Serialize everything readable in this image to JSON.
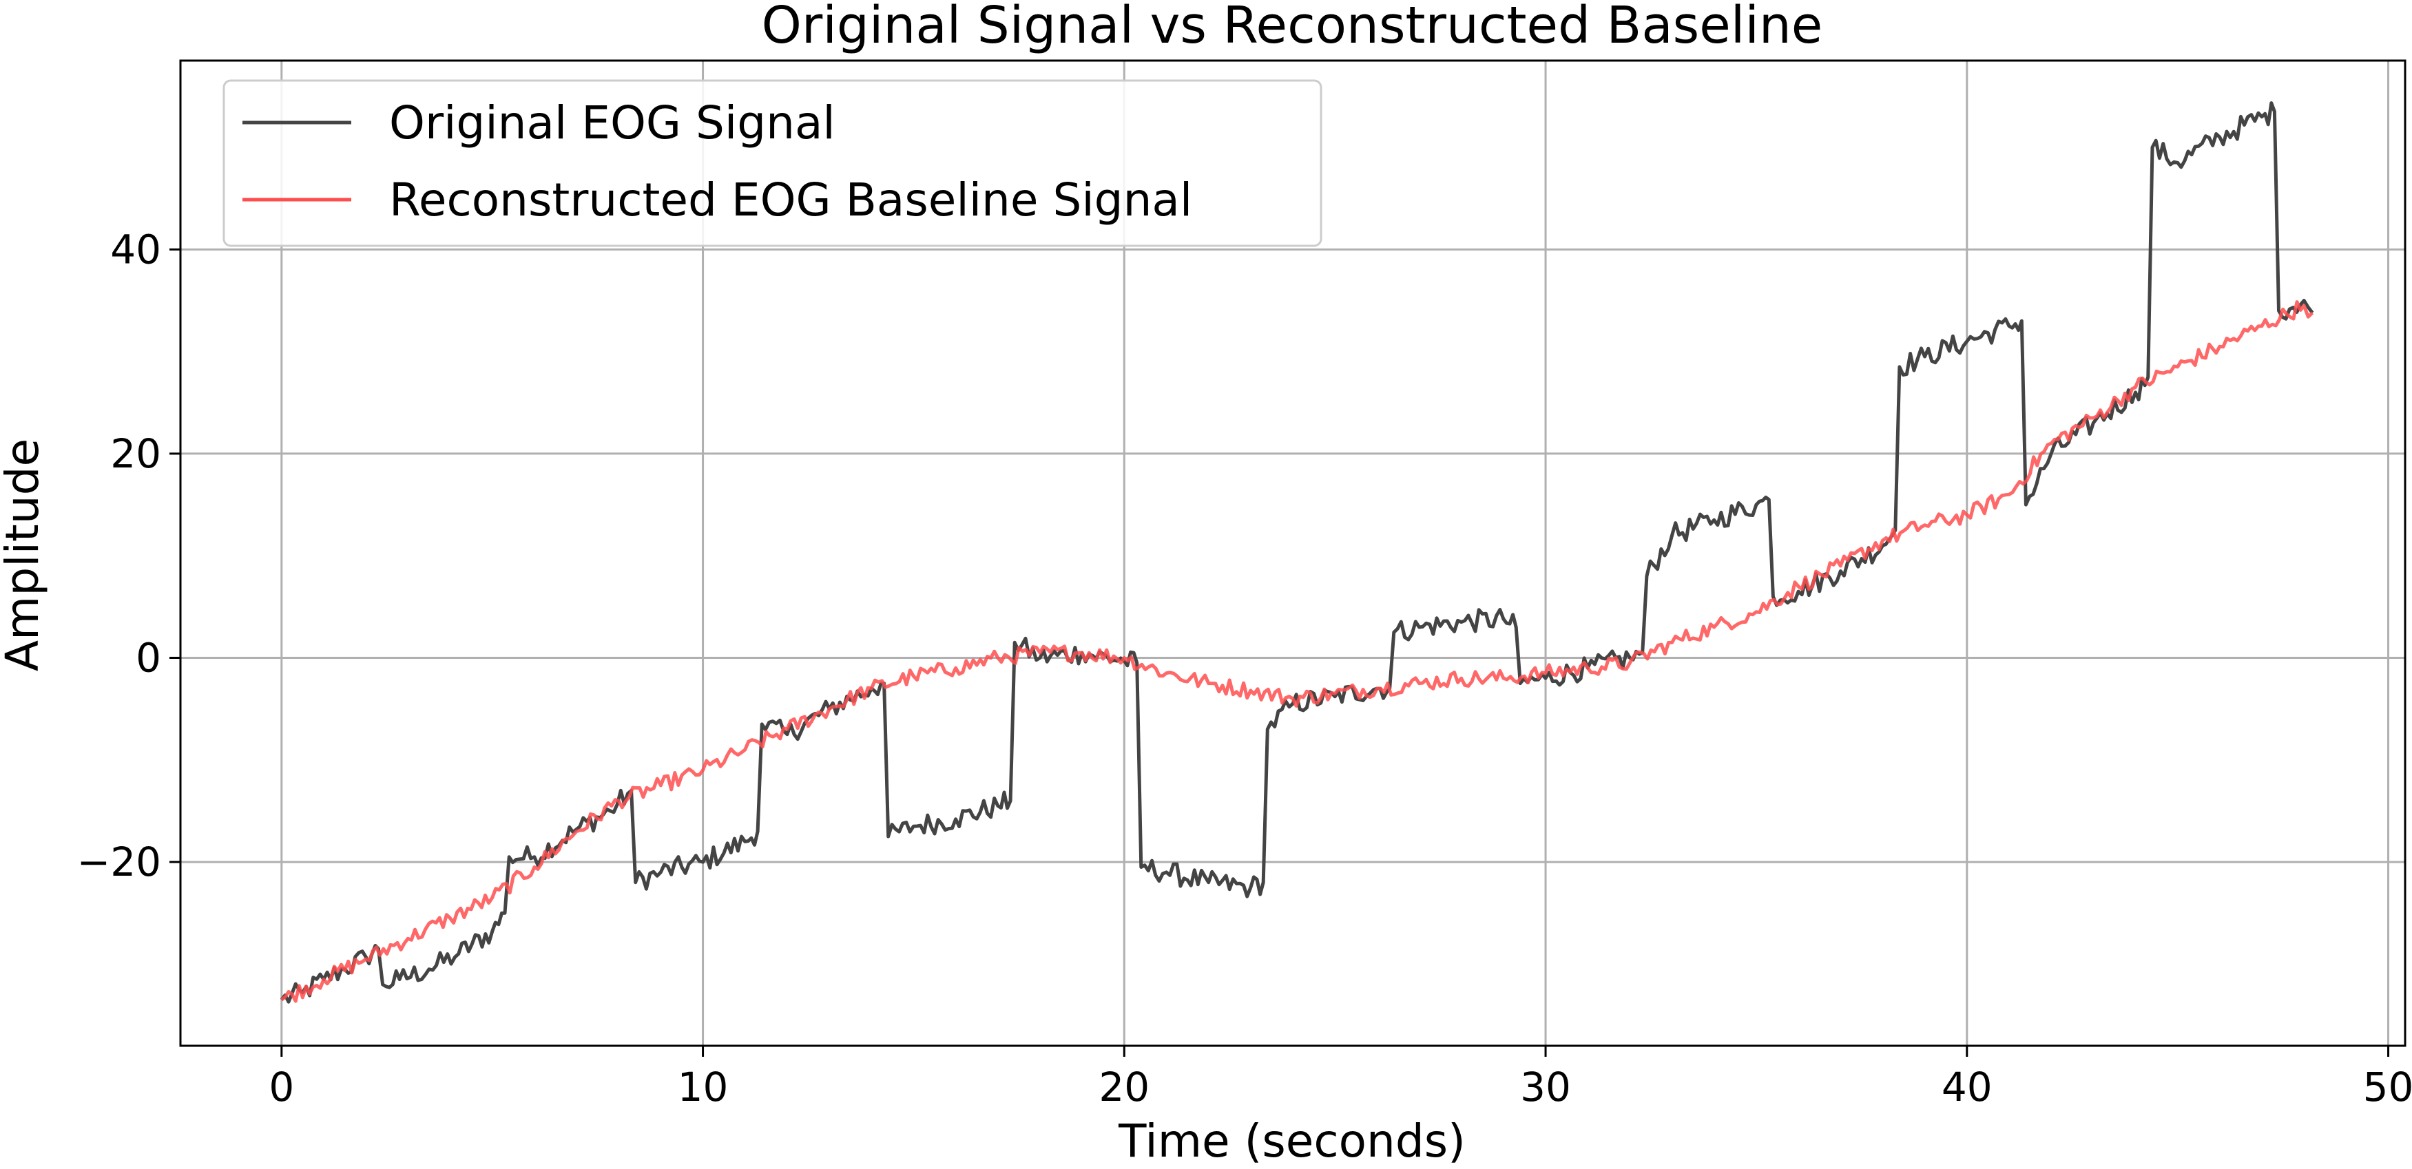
{
  "chart_data": {
    "type": "line",
    "title": "Original Signal vs Reconstructed Baseline",
    "xlabel": "Time (seconds)",
    "ylabel": "Amplitude",
    "xlim": [
      -2.4,
      50.4
    ],
    "ylim": [
      -38,
      58.5
    ],
    "x_ticks": [
      0,
      10,
      20,
      30,
      40,
      50
    ],
    "x_tick_labels": [
      "0",
      "10",
      "20",
      "30",
      "40",
      "50"
    ],
    "y_ticks": [
      -20,
      0,
      20,
      40
    ],
    "y_tick_labels": [
      "−20",
      "0",
      "20",
      "40"
    ],
    "grid": true,
    "legend_position": "upper-left",
    "series": [
      {
        "name": "Original EOG Signal",
        "color": "#444444",
        "points": [
          [
            0.0,
            -33.5
          ],
          [
            0.5,
            -32.8
          ],
          [
            1.0,
            -31.5
          ],
          [
            1.5,
            -30.5
          ],
          [
            2.0,
            -29.3
          ],
          [
            2.3,
            -28.5
          ],
          [
            2.4,
            -32.0
          ],
          [
            2.8,
            -31.5
          ],
          [
            3.5,
            -30.5
          ],
          [
            4.2,
            -29.0
          ],
          [
            5.0,
            -26.8
          ],
          [
            5.3,
            -25.0
          ],
          [
            5.4,
            -19.5
          ],
          [
            6.0,
            -19.5
          ],
          [
            7.0,
            -16.8
          ],
          [
            7.8,
            -15.0
          ],
          [
            8.3,
            -13.0
          ],
          [
            8.4,
            -22.0
          ],
          [
            9.0,
            -21.0
          ],
          [
            10.0,
            -20.0
          ],
          [
            11.0,
            -18.0
          ],
          [
            11.3,
            -17.0
          ],
          [
            11.4,
            -6.5
          ],
          [
            12.0,
            -7.5
          ],
          [
            13.0,
            -5.0
          ],
          [
            14.0,
            -3.0
          ],
          [
            14.3,
            -2.5
          ],
          [
            14.4,
            -17.5
          ],
          [
            15.0,
            -16.5
          ],
          [
            16.0,
            -15.8
          ],
          [
            17.0,
            -14.5
          ],
          [
            17.3,
            -14.0
          ],
          [
            17.4,
            1.5
          ],
          [
            18.0,
            0.0
          ],
          [
            19.0,
            0.5
          ],
          [
            20.0,
            -0.3
          ],
          [
            20.3,
            -0.5
          ],
          [
            20.4,
            -20.5
          ],
          [
            21.0,
            -21.0
          ],
          [
            22.0,
            -22.0
          ],
          [
            23.0,
            -22.5
          ],
          [
            23.3,
            -22.0
          ],
          [
            23.4,
            -7.0
          ],
          [
            24.0,
            -4.5
          ],
          [
            25.0,
            -3.8
          ],
          [
            26.0,
            -3.0
          ],
          [
            26.3,
            -3.0
          ],
          [
            26.4,
            2.5
          ],
          [
            27.0,
            3.0
          ],
          [
            28.0,
            3.5
          ],
          [
            29.0,
            3.8
          ],
          [
            29.3,
            3.0
          ],
          [
            29.4,
            -2.5
          ],
          [
            30.0,
            -2.0
          ],
          [
            31.0,
            -1.0
          ],
          [
            32.0,
            0.0
          ],
          [
            32.3,
            0.5
          ],
          [
            32.4,
            8.0
          ],
          [
            33.0,
            12.0
          ],
          [
            34.0,
            13.5
          ],
          [
            35.0,
            15.0
          ],
          [
            35.3,
            15.5
          ],
          [
            35.4,
            6.0
          ],
          [
            36.0,
            6.5
          ],
          [
            37.0,
            8.5
          ],
          [
            38.0,
            11.0
          ],
          [
            38.3,
            12.5
          ],
          [
            38.4,
            28.5
          ],
          [
            39.0,
            29.5
          ],
          [
            40.0,
            31.0
          ],
          [
            41.0,
            32.5
          ],
          [
            41.3,
            33.0
          ],
          [
            41.4,
            15.0
          ],
          [
            42.0,
            20.0
          ],
          [
            43.0,
            23.0
          ],
          [
            44.0,
            26.0
          ],
          [
            44.3,
            27.5
          ],
          [
            44.4,
            50.0
          ],
          [
            45.0,
            48.5
          ],
          [
            46.0,
            51.0
          ],
          [
            47.0,
            53.0
          ],
          [
            47.3,
            53.5
          ],
          [
            47.4,
            34.0
          ],
          [
            48.0,
            35.0
          ],
          [
            48.2,
            33.8
          ]
        ]
      },
      {
        "name": "Reconstructed EOG Baseline Signal",
        "color": "#ff4d4d",
        "points": [
          [
            0.0,
            -33.5
          ],
          [
            1.0,
            -31.5
          ],
          [
            2.0,
            -29.5
          ],
          [
            3.0,
            -27.5
          ],
          [
            4.0,
            -25.5
          ],
          [
            5.0,
            -23.5
          ],
          [
            6.0,
            -20.5
          ],
          [
            7.0,
            -17.0
          ],
          [
            8.0,
            -14.0
          ],
          [
            9.0,
            -12.5
          ],
          [
            10.0,
            -11.0
          ],
          [
            11.0,
            -9.0
          ],
          [
            12.0,
            -7.0
          ],
          [
            13.0,
            -5.0
          ],
          [
            14.0,
            -3.0
          ],
          [
            15.0,
            -1.8
          ],
          [
            16.0,
            -1.0
          ],
          [
            17.0,
            0.0
          ],
          [
            18.0,
            0.5
          ],
          [
            19.0,
            0.5
          ],
          [
            20.0,
            0.0
          ],
          [
            21.0,
            -1.5
          ],
          [
            22.0,
            -2.5
          ],
          [
            23.0,
            -3.2
          ],
          [
            24.0,
            -4.0
          ],
          [
            25.0,
            -3.5
          ],
          [
            26.0,
            -3.0
          ],
          [
            27.0,
            -2.5
          ],
          [
            28.0,
            -2.0
          ],
          [
            29.0,
            -2.0
          ],
          [
            30.0,
            -1.5
          ],
          [
            31.0,
            -1.0
          ],
          [
            32.0,
            -0.5
          ],
          [
            33.0,
            1.5
          ],
          [
            34.0,
            3.0
          ],
          [
            35.0,
            4.5
          ],
          [
            36.0,
            7.0
          ],
          [
            37.0,
            9.0
          ],
          [
            38.0,
            11.5
          ],
          [
            39.0,
            13.0
          ],
          [
            40.0,
            14.0
          ],
          [
            41.0,
            16.0
          ],
          [
            42.0,
            21.0
          ],
          [
            43.0,
            23.5
          ],
          [
            44.0,
            26.5
          ],
          [
            45.0,
            28.5
          ],
          [
            46.0,
            30.5
          ],
          [
            47.0,
            32.5
          ],
          [
            48.0,
            34.5
          ],
          [
            48.2,
            33.8
          ]
        ]
      }
    ]
  }
}
